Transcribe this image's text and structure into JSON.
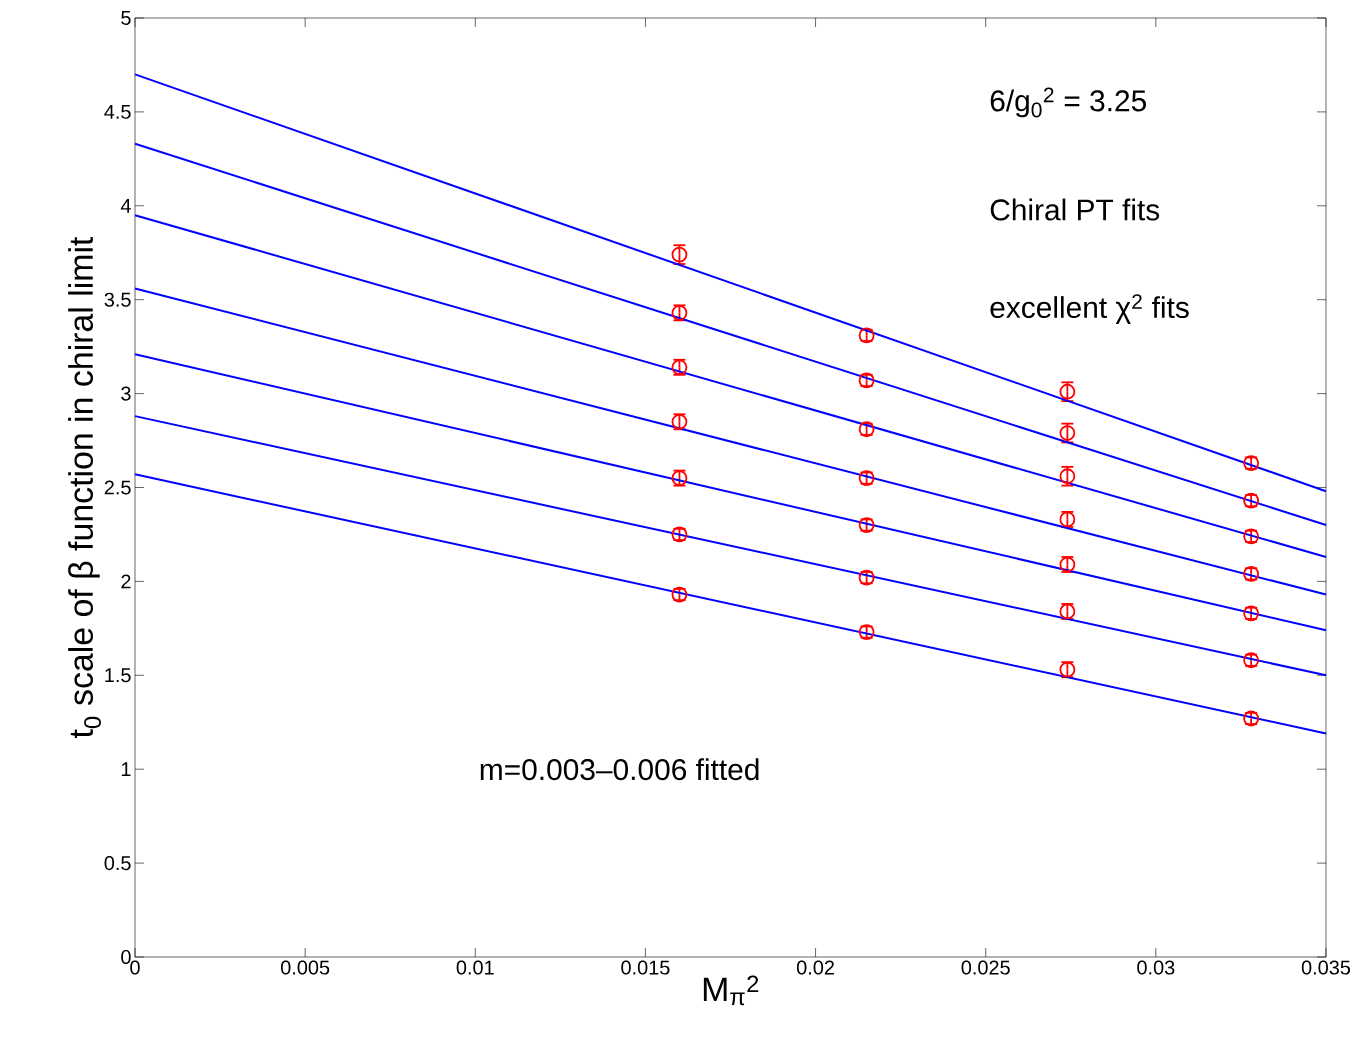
{
  "chart_data": {
    "type": "scatter",
    "xlabel": "M$_{π}$$^{2}$",
    "ylabel": "t$_{0}$ scale of β function in chiral limit",
    "annotations": [
      "6/g$_{0}$$^{2}$ = 3.25",
      "Chiral PT fits",
      "excellent χ$^{2}$ fits",
      "m=0.003–0.006 fitted"
    ],
    "xlim": [
      0,
      0.035
    ],
    "ylim": [
      0,
      5
    ],
    "xticks": [
      0,
      0.005,
      0.01,
      0.015,
      0.02,
      0.025,
      0.03,
      0.035
    ],
    "yticks": [
      0,
      0.5,
      1,
      1.5,
      2,
      2.5,
      3,
      3.5,
      4,
      4.5,
      5
    ],
    "grid": false,
    "marker": "circle",
    "series": [
      {
        "color": "#ff0000",
        "x": [
          0.016,
          0.0215,
          0.0274,
          0.0328
        ],
        "values": [
          3.74,
          3.31,
          3.01,
          2.63
        ],
        "errors": [
          0.05,
          0.03,
          0.05,
          0.03
        ]
      },
      {
        "color": "#ff0000",
        "x": [
          0.016,
          0.0215,
          0.0274,
          0.0328
        ],
        "values": [
          3.43,
          3.07,
          2.79,
          2.43
        ],
        "errors": [
          0.04,
          0.03,
          0.05,
          0.03
        ]
      },
      {
        "color": "#ff0000",
        "x": [
          0.016,
          0.0215,
          0.0274,
          0.0328
        ],
        "values": [
          3.14,
          2.81,
          2.56,
          2.24
        ],
        "errors": [
          0.04,
          0.03,
          0.05,
          0.03
        ]
      },
      {
        "color": "#ff0000",
        "x": [
          0.016,
          0.0215,
          0.0274,
          0.0328
        ],
        "values": [
          2.85,
          2.55,
          2.33,
          2.04
        ],
        "errors": [
          0.04,
          0.03,
          0.04,
          0.03
        ]
      },
      {
        "color": "#ff0000",
        "x": [
          0.016,
          0.0215,
          0.0274,
          0.0328
        ],
        "values": [
          2.55,
          2.3,
          2.09,
          1.83
        ],
        "errors": [
          0.04,
          0.03,
          0.04,
          0.03
        ]
      },
      {
        "color": "#ff0000",
        "x": [
          0.016,
          0.0215,
          0.0274,
          0.0328
        ],
        "values": [
          2.25,
          2.02,
          1.84,
          1.58
        ],
        "errors": [
          0.03,
          0.03,
          0.04,
          0.03
        ]
      },
      {
        "color": "#ff0000",
        "x": [
          0.016,
          0.0215,
          0.0274,
          0.0328
        ],
        "values": [
          1.93,
          1.73,
          1.53,
          1.27
        ],
        "errors": [
          0.03,
          0.03,
          0.04,
          0.03
        ]
      },
      {
        "type": "line",
        "marker": "none",
        "color": "#0000ff",
        "x": [
          0,
          0.035
        ],
        "values": [
          4.7,
          2.48
        ]
      },
      {
        "type": "line",
        "marker": "none",
        "color": "#0000ff",
        "x": [
          0,
          0.035
        ],
        "values": [
          4.33,
          2.3
        ]
      },
      {
        "type": "line",
        "marker": "none",
        "color": "#0000ff",
        "x": [
          0,
          0.035
        ],
        "values": [
          3.95,
          2.13
        ]
      },
      {
        "type": "line",
        "marker": "none",
        "color": "#0000ff",
        "x": [
          0,
          0.035
        ],
        "values": [
          3.56,
          1.93
        ]
      },
      {
        "type": "line",
        "marker": "none",
        "color": "#0000ff",
        "x": [
          0,
          0.035
        ],
        "values": [
          3.21,
          1.74
        ]
      },
      {
        "type": "line",
        "marker": "none",
        "color": "#0000ff",
        "x": [
          0,
          0.035
        ],
        "values": [
          2.88,
          1.5
        ]
      },
      {
        "type": "line",
        "marker": "none",
        "color": "#0000ff",
        "x": [
          0,
          0.035
        ],
        "values": [
          2.57,
          1.19
        ]
      }
    ]
  }
}
